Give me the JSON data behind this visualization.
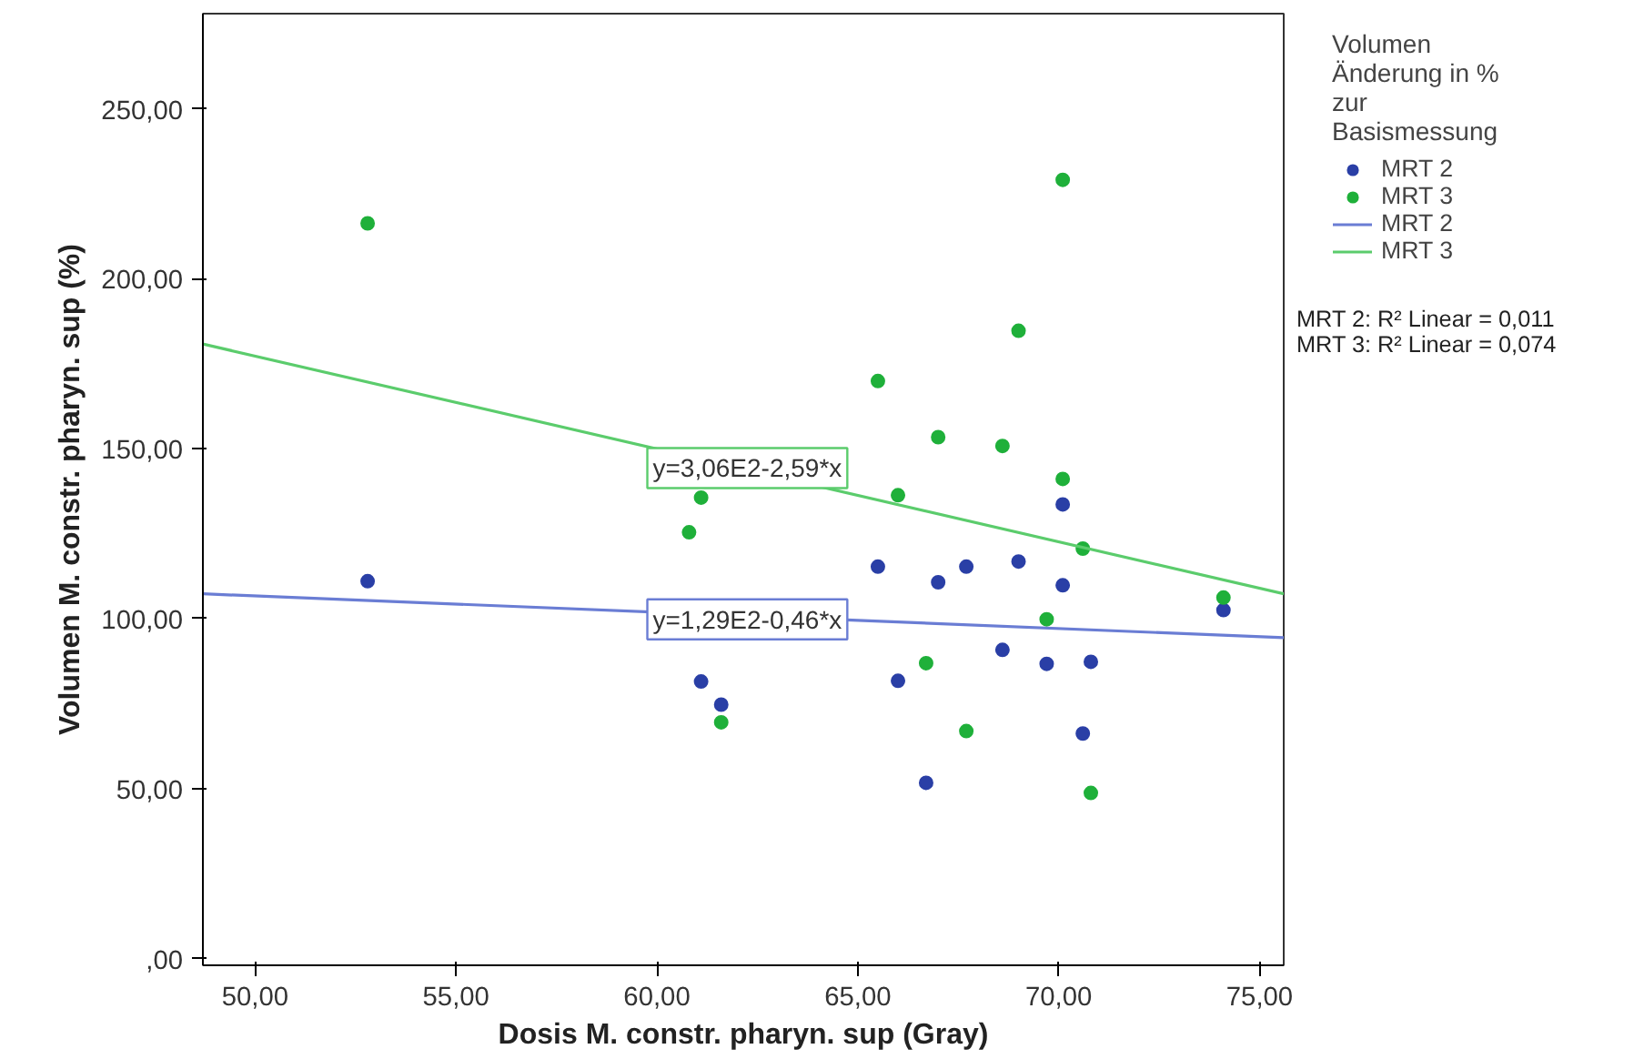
{
  "chart_data": {
    "type": "scatter",
    "xlabel": "Dosis M. constr. pharyn. sup (Gray)",
    "ylabel": "Volumen M. constr. pharyn. sup (%)",
    "legend_title": "Volumen Änderung in % zur Basismessung",
    "xlim": [
      48.7,
      75.6
    ],
    "ylim": [
      -2,
      278
    ],
    "xticks": [
      {
        "value": 50,
        "label": "50,00"
      },
      {
        "value": 55,
        "label": "55,00"
      },
      {
        "value": 60,
        "label": "60,00"
      },
      {
        "value": 65,
        "label": "65,00"
      },
      {
        "value": 70,
        "label": "70,00"
      },
      {
        "value": 75,
        "label": "75,00"
      }
    ],
    "yticks": [
      {
        "value": 0,
        "label": ",00"
      },
      {
        "value": 50,
        "label": "50,00"
      },
      {
        "value": 100,
        "label": "100,00"
      },
      {
        "value": 150,
        "label": "150,00"
      },
      {
        "value": 200,
        "label": "200,00"
      },
      {
        "value": 250,
        "label": "250,00"
      }
    ],
    "grid": false,
    "legend": "right",
    "series": [
      {
        "name": "MRT 2",
        "color": "#2a3fa6",
        "x": [
          52.8,
          61.1,
          61.6,
          65.5,
          66.0,
          66.7,
          67.0,
          67.7,
          68.6,
          69.0,
          69.7,
          70.1,
          70.1,
          70.6,
          70.8,
          74.1
        ],
        "values": [
          111,
          81.5,
          74.7,
          115.3,
          81.7,
          51.7,
          110.7,
          115.3,
          90.8,
          116.8,
          86.7,
          133.6,
          109.8,
          66.2,
          87.3,
          102.5
        ]
      },
      {
        "name": "MRT 3",
        "color": "#1fb03a",
        "x": [
          52.8,
          60.8,
          61.1,
          61.6,
          65.5,
          66.0,
          66.7,
          67.0,
          67.7,
          68.6,
          69.0,
          69.7,
          70.1,
          70.1,
          70.6,
          70.8,
          74.1
        ],
        "values": [
          216.3,
          125.4,
          135.6,
          69.5,
          169.9,
          136.3,
          86.9,
          153.4,
          66.9,
          150.8,
          184.7,
          99.8,
          229.1,
          141.1,
          120.6,
          48.7,
          106.2
        ]
      },
      {
        "name": "MRT 2",
        "type": "line",
        "color": "#6a7dd4",
        "x": [
          48.7,
          75.6
        ],
        "values": [
          107.3,
          94.4
        ]
      },
      {
        "name": "MRT 3",
        "type": "line",
        "color": "#5bcc6c",
        "x": [
          48.7,
          75.6
        ],
        "values": [
          180.8,
          107.3
        ]
      }
    ],
    "annotations": [
      {
        "text": "y=1,29E2-0,46*x",
        "x": 62.25,
        "y": 99.8
      },
      {
        "text": "y=3,06E2-2,59*x",
        "x": 62.25,
        "y": 144.3
      },
      "MRT 2: R² Linear = 0,011",
      "MRT 3: R² Linear = 0,074"
    ]
  }
}
